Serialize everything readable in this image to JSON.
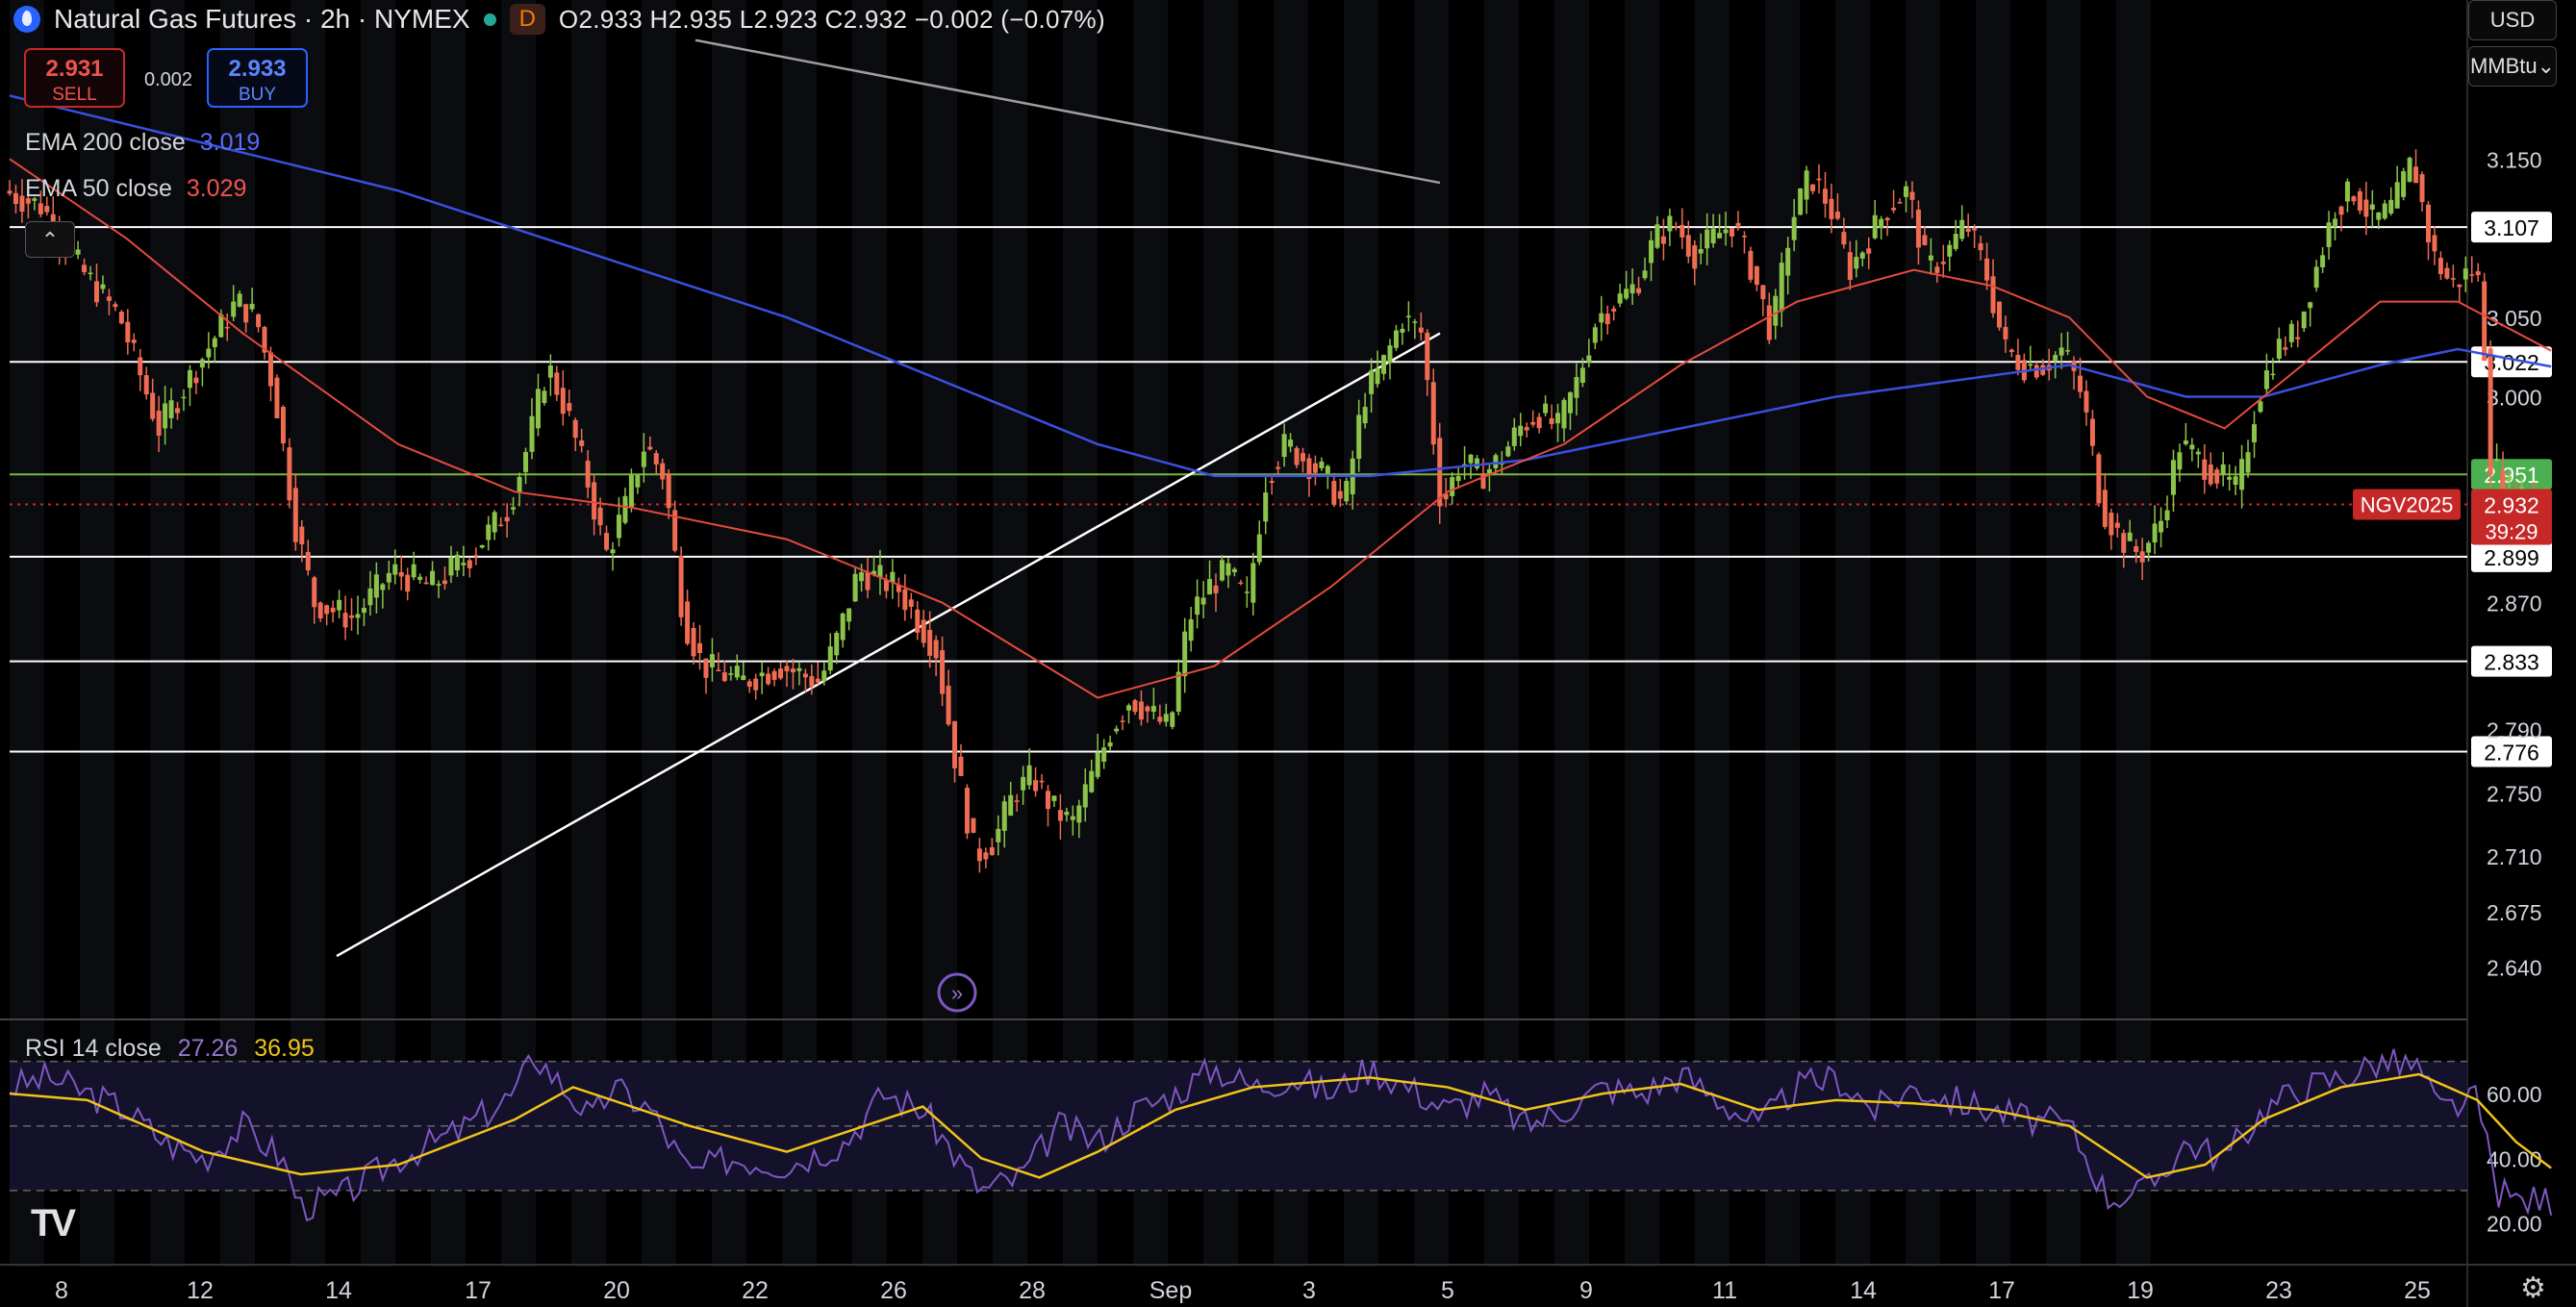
{
  "header": {
    "title": "Natural Gas Futures · 2h · NYMEX",
    "d_badge": "D",
    "ohlc": "O2.933 H2.935 L2.923 C2.932 −0.002 (−0.07%)"
  },
  "trade": {
    "sell_price": "2.931",
    "sell_label": "SELL",
    "buy_price": "2.933",
    "buy_label": "BUY",
    "spread": "0.002"
  },
  "indicators": {
    "ema200_label": "EMA 200 close",
    "ema200_value": "3.019",
    "ema50_label": "EMA 50 close",
    "ema50_value": "3.029",
    "rsi_label": "RSI 14 close",
    "rsi_value": "27.26",
    "rsi_ma_value": "36.95"
  },
  "axis_units": {
    "currency": "USD",
    "unit": "MMBtu"
  },
  "chart_data": {
    "type": "candlestick",
    "symbol": "NGV2025",
    "last_price": "2.932",
    "countdown": "39:29",
    "ylim": [
      2.61,
      3.22
    ],
    "y_ticks": [
      "3.150",
      "3.050",
      "3.000",
      "2.870",
      "2.790",
      "2.750",
      "2.710",
      "2.675",
      "2.640"
    ],
    "x_tick_labels": [
      "8",
      "12",
      "14",
      "17",
      "20",
      "22",
      "26",
      "28",
      "Sep",
      "3",
      "5",
      "9",
      "11",
      "14",
      "17",
      "19",
      "23",
      "25"
    ],
    "horizontal_levels": [
      3.107,
      3.022,
      2.951,
      2.899,
      2.833,
      2.776
    ],
    "level_labels": [
      "3.107",
      "3.022",
      "2.951",
      "2.899",
      "2.833",
      "2.776"
    ],
    "price_path": [
      [
        0,
        3.13
      ],
      [
        20,
        3.12
      ],
      [
        40,
        3.08
      ],
      [
        60,
        3.05
      ],
      [
        80,
        2.98
      ],
      [
        100,
        3.02
      ],
      [
        120,
        3.06
      ],
      [
        130,
        3.05
      ],
      [
        140,
        3.0
      ],
      [
        150,
        2.92
      ],
      [
        160,
        2.87
      ],
      [
        180,
        2.86
      ],
      [
        200,
        2.89
      ],
      [
        220,
        2.88
      ],
      [
        240,
        2.9
      ],
      [
        260,
        2.93
      ],
      [
        270,
        2.97
      ],
      [
        280,
        3.02
      ],
      [
        290,
        2.99
      ],
      [
        300,
        2.95
      ],
      [
        310,
        2.9
      ],
      [
        320,
        2.93
      ],
      [
        330,
        2.97
      ],
      [
        340,
        2.95
      ],
      [
        350,
        2.86
      ],
      [
        360,
        2.83
      ],
      [
        380,
        2.82
      ],
      [
        400,
        2.83
      ],
      [
        420,
        2.82
      ],
      [
        430,
        2.85
      ],
      [
        440,
        2.89
      ],
      [
        460,
        2.88
      ],
      [
        470,
        2.86
      ],
      [
        480,
        2.84
      ],
      [
        490,
        2.77
      ],
      [
        500,
        2.71
      ],
      [
        510,
        2.72
      ],
      [
        520,
        2.75
      ],
      [
        530,
        2.76
      ],
      [
        540,
        2.74
      ],
      [
        550,
        2.73
      ],
      [
        560,
        2.76
      ],
      [
        570,
        2.79
      ],
      [
        580,
        2.81
      ],
      [
        590,
        2.8
      ],
      [
        600,
        2.79
      ],
      [
        610,
        2.86
      ],
      [
        620,
        2.88
      ],
      [
        630,
        2.89
      ],
      [
        640,
        2.87
      ],
      [
        650,
        2.95
      ],
      [
        660,
        2.97
      ],
      [
        670,
        2.96
      ],
      [
        680,
        2.95
      ],
      [
        690,
        2.93
      ],
      [
        700,
        3.0
      ],
      [
        710,
        3.02
      ],
      [
        720,
        3.05
      ],
      [
        730,
        3.04
      ],
      [
        740,
        2.93
      ],
      [
        750,
        2.96
      ],
      [
        760,
        2.95
      ],
      [
        770,
        2.96
      ],
      [
        780,
        2.98
      ],
      [
        790,
        2.99
      ],
      [
        800,
        2.98
      ],
      [
        810,
        3.01
      ],
      [
        820,
        3.05
      ],
      [
        830,
        3.06
      ],
      [
        840,
        3.07
      ],
      [
        850,
        3.1
      ],
      [
        860,
        3.11
      ],
      [
        870,
        3.09
      ],
      [
        880,
        3.1
      ],
      [
        890,
        3.11
      ],
      [
        900,
        3.08
      ],
      [
        910,
        3.04
      ],
      [
        920,
        3.11
      ],
      [
        930,
        3.14
      ],
      [
        940,
        3.12
      ],
      [
        950,
        3.08
      ],
      [
        960,
        3.1
      ],
      [
        970,
        3.12
      ],
      [
        980,
        3.13
      ],
      [
        990,
        3.08
      ],
      [
        1000,
        3.09
      ],
      [
        1010,
        3.11
      ],
      [
        1020,
        3.08
      ],
      [
        1030,
        3.03
      ],
      [
        1040,
        3.02
      ],
      [
        1050,
        3.02
      ],
      [
        1060,
        3.03
      ],
      [
        1070,
        3.0
      ],
      [
        1080,
        2.93
      ],
      [
        1090,
        2.91
      ],
      [
        1100,
        2.9
      ],
      [
        1110,
        2.92
      ],
      [
        1120,
        2.97
      ],
      [
        1130,
        2.96
      ],
      [
        1140,
        2.95
      ],
      [
        1150,
        2.94
      ],
      [
        1160,
        3.0
      ],
      [
        1170,
        3.03
      ],
      [
        1180,
        3.04
      ],
      [
        1190,
        3.08
      ],
      [
        1200,
        3.12
      ],
      [
        1210,
        3.13
      ],
      [
        1220,
        3.11
      ],
      [
        1230,
        3.12
      ],
      [
        1240,
        3.15
      ],
      [
        1250,
        3.09
      ],
      [
        1260,
        3.07
      ],
      [
        1270,
        3.08
      ],
      [
        1275,
        3.07
      ],
      [
        1280,
        2.96
      ],
      [
        1290,
        2.94
      ],
      [
        1300,
        2.94
      ],
      [
        1308,
        2.932
      ]
    ],
    "ema50_path": [
      [
        0,
        3.15
      ],
      [
        60,
        3.1
      ],
      [
        120,
        3.04
      ],
      [
        200,
        2.97
      ],
      [
        260,
        2.94
      ],
      [
        320,
        2.93
      ],
      [
        400,
        2.91
      ],
      [
        480,
        2.87
      ],
      [
        560,
        2.81
      ],
      [
        620,
        2.83
      ],
      [
        680,
        2.88
      ],
      [
        740,
        2.94
      ],
      [
        800,
        2.97
      ],
      [
        860,
        3.02
      ],
      [
        920,
        3.06
      ],
      [
        980,
        3.08
      ],
      [
        1020,
        3.07
      ],
      [
        1060,
        3.05
      ],
      [
        1100,
        3.0
      ],
      [
        1140,
        2.98
      ],
      [
        1180,
        3.02
      ],
      [
        1220,
        3.06
      ],
      [
        1260,
        3.06
      ],
      [
        1308,
        3.029
      ]
    ],
    "ema200_path": [
      [
        0,
        3.19
      ],
      [
        100,
        3.16
      ],
      [
        200,
        3.13
      ],
      [
        300,
        3.09
      ],
      [
        400,
        3.05
      ],
      [
        500,
        3.0
      ],
      [
        560,
        2.97
      ],
      [
        620,
        2.95
      ],
      [
        700,
        2.95
      ],
      [
        780,
        2.96
      ],
      [
        860,
        2.98
      ],
      [
        940,
        3.0
      ],
      [
        1000,
        3.01
      ],
      [
        1060,
        3.02
      ],
      [
        1120,
        3.0
      ],
      [
        1160,
        3.0
      ],
      [
        1220,
        3.02
      ],
      [
        1260,
        3.03
      ],
      [
        1308,
        3.019
      ]
    ],
    "trendlines": [
      {
        "from": [
          350,
          2.647
        ],
        "to": [
          1497,
          3.04
        ],
        "color": "#ffffff"
      },
      {
        "from": [
          723,
          3.225
        ],
        "to": [
          1497,
          3.135
        ],
        "color": "#9e9e9e"
      }
    ],
    "rsi_ylim": [
      10,
      80
    ],
    "rsi_ticks": [
      "60.00",
      "40.00",
      "20.00"
    ],
    "rsi_bands": [
      70,
      50,
      30
    ],
    "rsi_path": [
      [
        0,
        62
      ],
      [
        20,
        65
      ],
      [
        40,
        60
      ],
      [
        60,
        55
      ],
      [
        80,
        45
      ],
      [
        100,
        40
      ],
      [
        120,
        50
      ],
      [
        140,
        40
      ],
      [
        150,
        25
      ],
      [
        170,
        28
      ],
      [
        200,
        40
      ],
      [
        230,
        48
      ],
      [
        260,
        60
      ],
      [
        270,
        72
      ],
      [
        285,
        62
      ],
      [
        300,
        52
      ],
      [
        310,
        62
      ],
      [
        330,
        55
      ],
      [
        350,
        35
      ],
      [
        370,
        40
      ],
      [
        400,
        38
      ],
      [
        430,
        45
      ],
      [
        450,
        60
      ],
      [
        470,
        55
      ],
      [
        490,
        38
      ],
      [
        500,
        30
      ],
      [
        520,
        34
      ],
      [
        540,
        50
      ],
      [
        560,
        45
      ],
      [
        580,
        55
      ],
      [
        600,
        60
      ],
      [
        620,
        68
      ],
      [
        640,
        62
      ],
      [
        660,
        65
      ],
      [
        680,
        60
      ],
      [
        700,
        68
      ],
      [
        720,
        62
      ],
      [
        740,
        55
      ],
      [
        760,
        60
      ],
      [
        780,
        50
      ],
      [
        800,
        55
      ],
      [
        820,
        62
      ],
      [
        840,
        60
      ],
      [
        860,
        66
      ],
      [
        880,
        58
      ],
      [
        900,
        50
      ],
      [
        920,
        62
      ],
      [
        940,
        65
      ],
      [
        960,
        55
      ],
      [
        980,
        62
      ],
      [
        1000,
        58
      ],
      [
        1020,
        55
      ],
      [
        1040,
        52
      ],
      [
        1060,
        50
      ],
      [
        1080,
        28
      ],
      [
        1100,
        30
      ],
      [
        1120,
        45
      ],
      [
        1140,
        40
      ],
      [
        1160,
        55
      ],
      [
        1180,
        62
      ],
      [
        1200,
        65
      ],
      [
        1220,
        70
      ],
      [
        1240,
        68
      ],
      [
        1250,
        55
      ],
      [
        1270,
        58
      ],
      [
        1280,
        30
      ],
      [
        1290,
        27
      ],
      [
        1308,
        27.26
      ]
    ],
    "rsi_ma_path": [
      [
        0,
        60
      ],
      [
        40,
        58
      ],
      [
        100,
        42
      ],
      [
        150,
        35
      ],
      [
        200,
        38
      ],
      [
        260,
        52
      ],
      [
        290,
        62
      ],
      [
        320,
        56
      ],
      [
        350,
        50
      ],
      [
        400,
        42
      ],
      [
        440,
        50
      ],
      [
        470,
        56
      ],
      [
        500,
        40
      ],
      [
        530,
        34
      ],
      [
        560,
        42
      ],
      [
        600,
        55
      ],
      [
        640,
        62
      ],
      [
        700,
        65
      ],
      [
        740,
        62
      ],
      [
        780,
        55
      ],
      [
        820,
        60
      ],
      [
        860,
        63
      ],
      [
        900,
        55
      ],
      [
        940,
        58
      ],
      [
        980,
        57
      ],
      [
        1020,
        55
      ],
      [
        1060,
        50
      ],
      [
        1100,
        34
      ],
      [
        1130,
        38
      ],
      [
        1160,
        52
      ],
      [
        1200,
        62
      ],
      [
        1240,
        66
      ],
      [
        1270,
        58
      ],
      [
        1290,
        45
      ],
      [
        1308,
        36.95
      ]
    ]
  },
  "colors": {
    "candle_up": "#8bc34a",
    "candle_down": "#ef6c53",
    "ema50": "#e64a3d",
    "ema200": "#3a4fe0",
    "rsi": "#7e57c2",
    "rsi_ma": "#f0c419",
    "level": "#ffffff",
    "level_green": "#7cb342",
    "last_price": "#d32f2f"
  }
}
